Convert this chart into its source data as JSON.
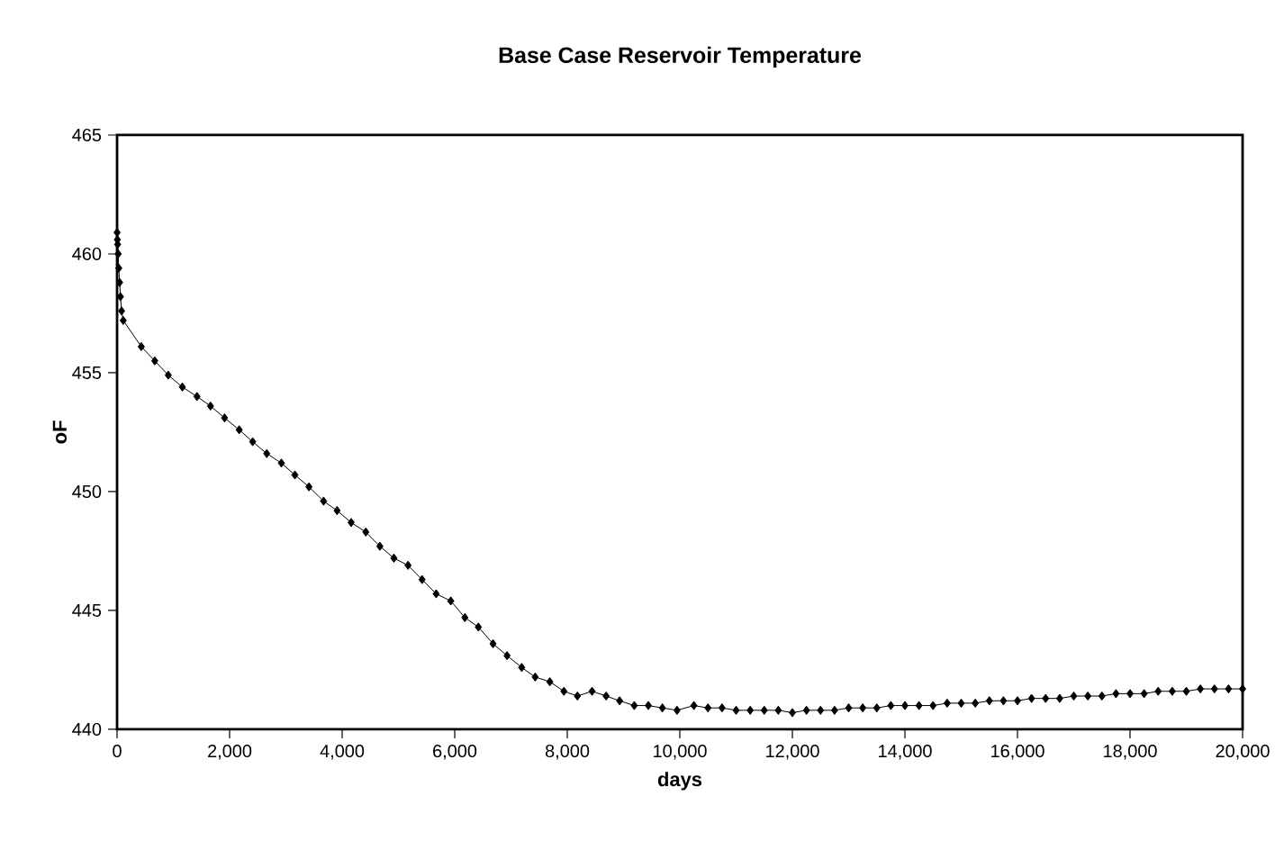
{
  "chart_data": {
    "type": "line",
    "title": "Base Case Reservoir Temperature",
    "xlabel": "days",
    "ylabel": "oF",
    "x": [
      0,
      5,
      10,
      20,
      30,
      45,
      60,
      80,
      110,
      430,
      670,
      910,
      1160,
      1420,
      1660,
      1910,
      2170,
      2410,
      2660,
      2920,
      3160,
      3410,
      3670,
      3910,
      4160,
      4420,
      4670,
      4920,
      5170,
      5420,
      5670,
      5930,
      6180,
      6420,
      6680,
      6930,
      7190,
      7430,
      7690,
      7940,
      8180,
      8440,
      8690,
      8930,
      9190,
      9440,
      9690,
      9950,
      10250,
      10500,
      10750,
      11000,
      11250,
      11500,
      11750,
      12000,
      12250,
      12500,
      12750,
      13000,
      13250,
      13500,
      13750,
      14000,
      14250,
      14500,
      14750,
      15000,
      15250,
      15500,
      15750,
      16000,
      16250,
      16500,
      16750,
      17000,
      17250,
      17500,
      17750,
      18000,
      18250,
      18500,
      18750,
      19000,
      19250,
      19500,
      19750,
      20000
    ],
    "series": [
      {
        "color": "#000000",
        "values": [
          460.9,
          460.6,
          460.4,
          460.0,
          459.4,
          458.8,
          458.2,
          457.6,
          457.2,
          456.1,
          455.5,
          454.9,
          454.4,
          454.0,
          453.6,
          453.1,
          452.6,
          452.1,
          451.6,
          451.2,
          450.7,
          450.2,
          449.6,
          449.2,
          448.7,
          448.3,
          447.7,
          447.2,
          446.9,
          446.3,
          445.7,
          445.4,
          444.7,
          444.3,
          443.6,
          443.1,
          442.6,
          442.2,
          442.0,
          441.6,
          441.4,
          441.6,
          441.4,
          441.2,
          441.0,
          441.0,
          440.9,
          440.8,
          441.0,
          440.9,
          440.9,
          440.8,
          440.8,
          440.8,
          440.8,
          440.7,
          440.8,
          440.8,
          440.8,
          440.9,
          440.9,
          440.9,
          441.0,
          441.0,
          441.0,
          441.0,
          441.1,
          441.1,
          441.1,
          441.2,
          441.2,
          441.2,
          441.3,
          441.3,
          441.3,
          441.4,
          441.4,
          441.4,
          441.5,
          441.5,
          441.5,
          441.6,
          441.6,
          441.6,
          441.7,
          441.7,
          441.7,
          441.7
        ]
      }
    ],
    "xlim": [
      0,
      20000
    ],
    "ylim": [
      440,
      465
    ],
    "xticks": [
      0,
      {
        "value": 2000,
        "label": "2,000"
      },
      {
        "value": 4000,
        "label": "4,000"
      },
      {
        "value": 6000,
        "label": "6,000"
      },
      {
        "value": 8000,
        "label": "8,000"
      },
      {
        "value": 10000,
        "label": "10,000"
      },
      {
        "value": 12000,
        "label": "12,000"
      },
      {
        "value": 14000,
        "label": "14,000"
      },
      {
        "value": 16000,
        "label": "16,000"
      },
      {
        "value": 18000,
        "label": "18,000"
      },
      {
        "value": 20000,
        "label": "20,000"
      }
    ],
    "yticks": [
      440,
      445,
      450,
      455,
      460,
      465
    ],
    "grid": false,
    "marker": "diamond",
    "line_style": "solid"
  }
}
